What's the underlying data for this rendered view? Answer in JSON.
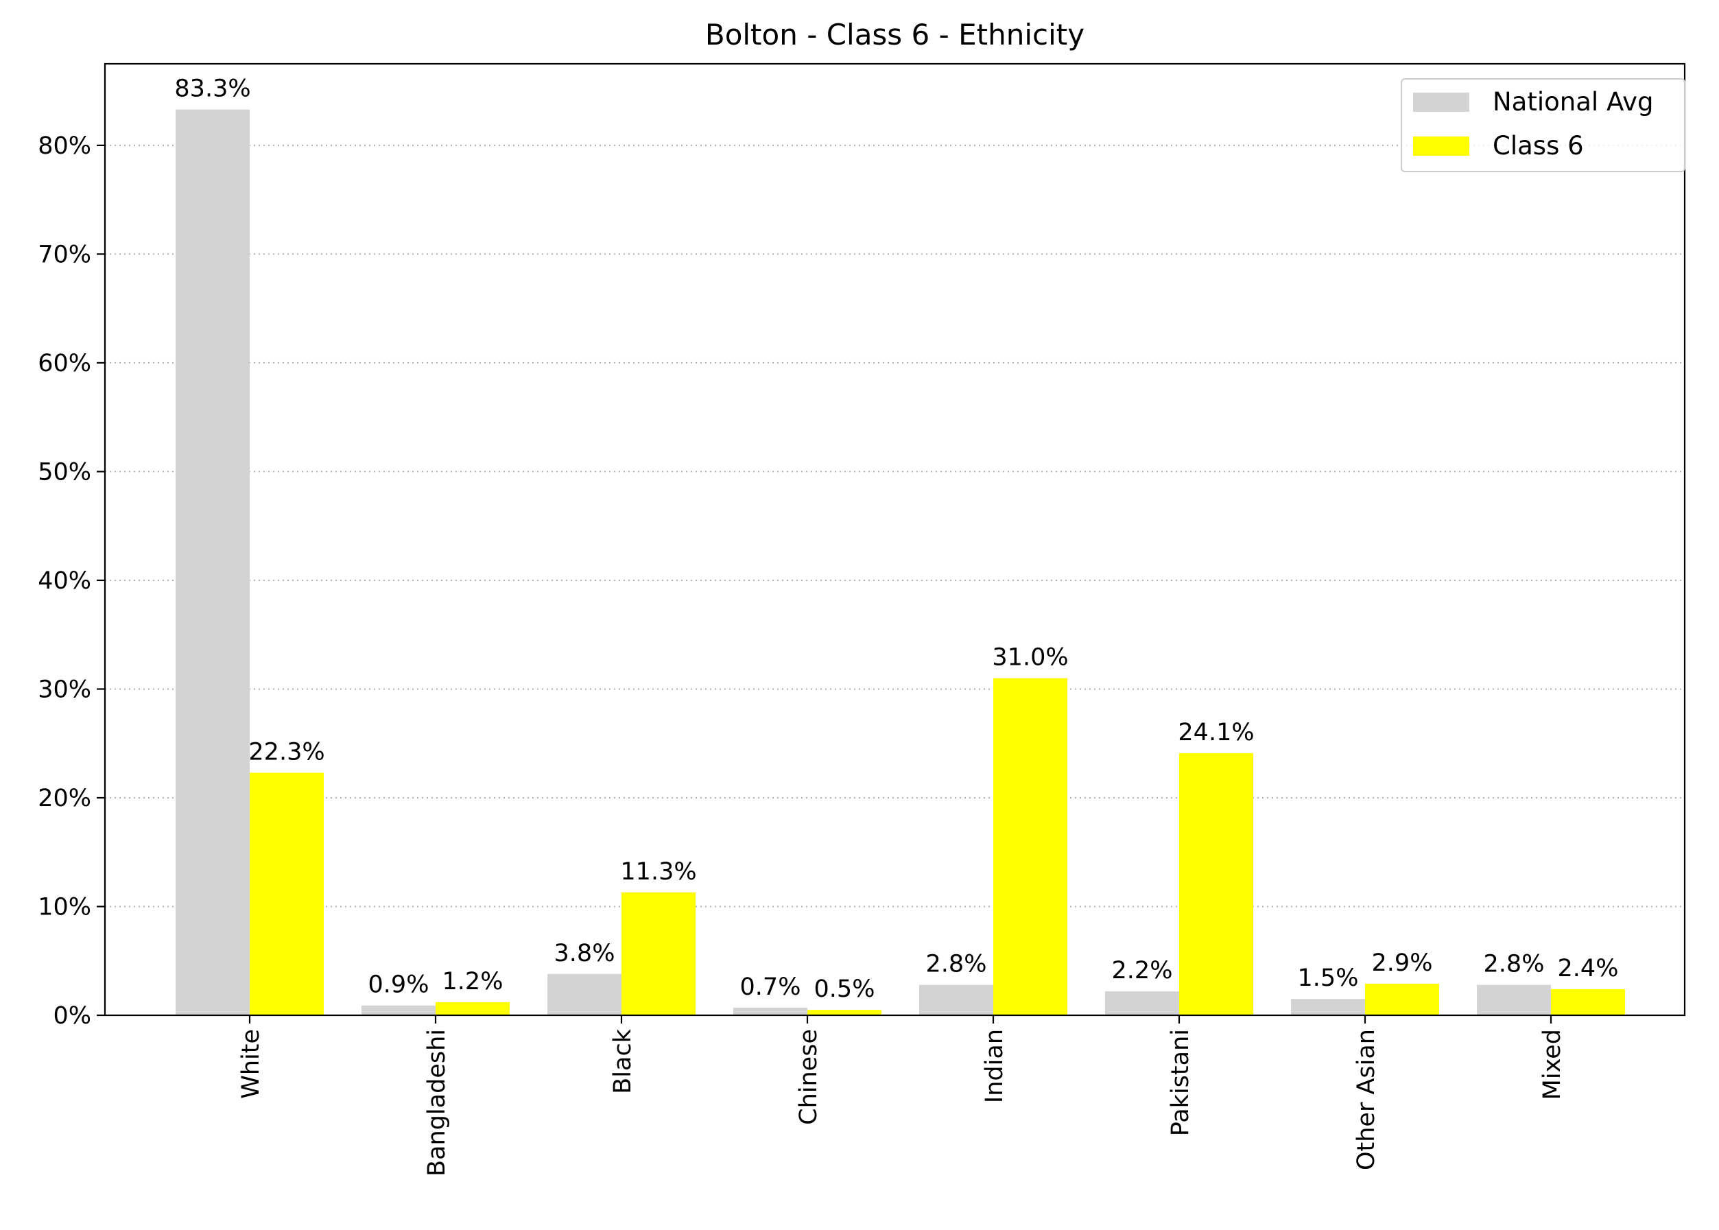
{
  "chart_data": {
    "type": "bar",
    "title": "Bolton - Class 6 - Ethnicity",
    "xlabel": "",
    "ylabel": "",
    "categories": [
      "White",
      "Bangladeshi",
      "Black",
      "Chinese",
      "Indian",
      "Pakistani",
      "Other Asian",
      "Mixed"
    ],
    "series": [
      {
        "name": "National Avg",
        "color": "#d3d3d3",
        "values": [
          83.3,
          0.9,
          3.8,
          0.7,
          2.8,
          2.2,
          1.5,
          2.8
        ],
        "labels": [
          "83.3%",
          "0.9%",
          "3.8%",
          "0.7%",
          "2.8%",
          "2.2%",
          "1.5%",
          "2.8%"
        ]
      },
      {
        "name": "Class 6",
        "color": "#ffff00",
        "values": [
          22.3,
          1.2,
          11.3,
          0.5,
          31.0,
          24.1,
          2.9,
          2.4
        ],
        "labels": [
          "22.3%",
          "1.2%",
          "11.3%",
          "0.5%",
          "31.0%",
          "24.1%",
          "2.9%",
          "2.4%"
        ]
      }
    ],
    "ylim": [
      0,
      87.5
    ],
    "yticks": [
      0,
      10,
      20,
      30,
      40,
      50,
      60,
      70,
      80
    ],
    "ytick_labels": [
      "0%",
      "10%",
      "20%",
      "30%",
      "40%",
      "50%",
      "60%",
      "70%",
      "80%"
    ],
    "grid": "horizontal dotted",
    "legend": "top-right"
  }
}
